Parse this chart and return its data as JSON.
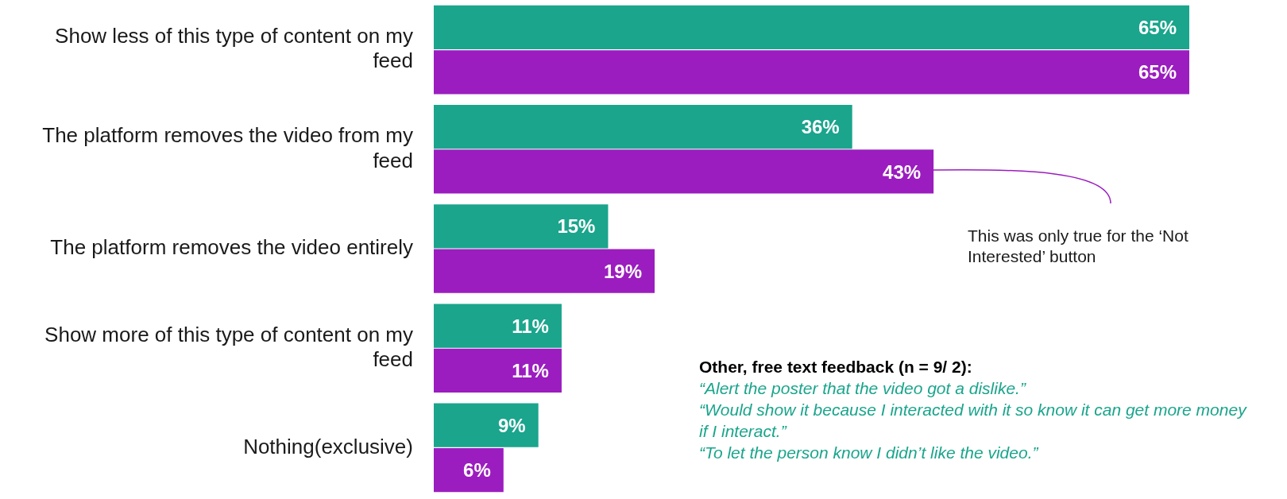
{
  "chart_data": {
    "type": "bar",
    "orientation": "horizontal",
    "categories": [
      "Show less of this type of content on my feed",
      "The platform removes the video from my feed",
      "The platform removes the video entirely",
      "Show more of this type of content on my feed",
      "Nothing(exclusive)"
    ],
    "series": [
      {
        "color": "#1aa58c",
        "values": [
          65,
          36,
          15,
          11,
          9
        ],
        "value_labels": [
          "65%",
          "36%",
          "15%",
          "11%",
          "9%"
        ]
      },
      {
        "color": "#9b1dbf",
        "values": [
          65,
          43,
          19,
          11,
          6
        ],
        "value_labels": [
          "65%",
          "43%",
          "19%",
          "11%",
          "6%"
        ]
      }
    ],
    "tick_labels": "y",
    "annotations": [
      "This was only true for the ‘Not Interested’ button",
      "Other, free text feedback (n = 9/ 2):",
      "“Alert the poster that the video got a dislike.”",
      "“Would show it because I interacted with it so know it can get more money if I interact.”",
      "“To let the person know I didn’t like the video.”"
    ]
  }
}
